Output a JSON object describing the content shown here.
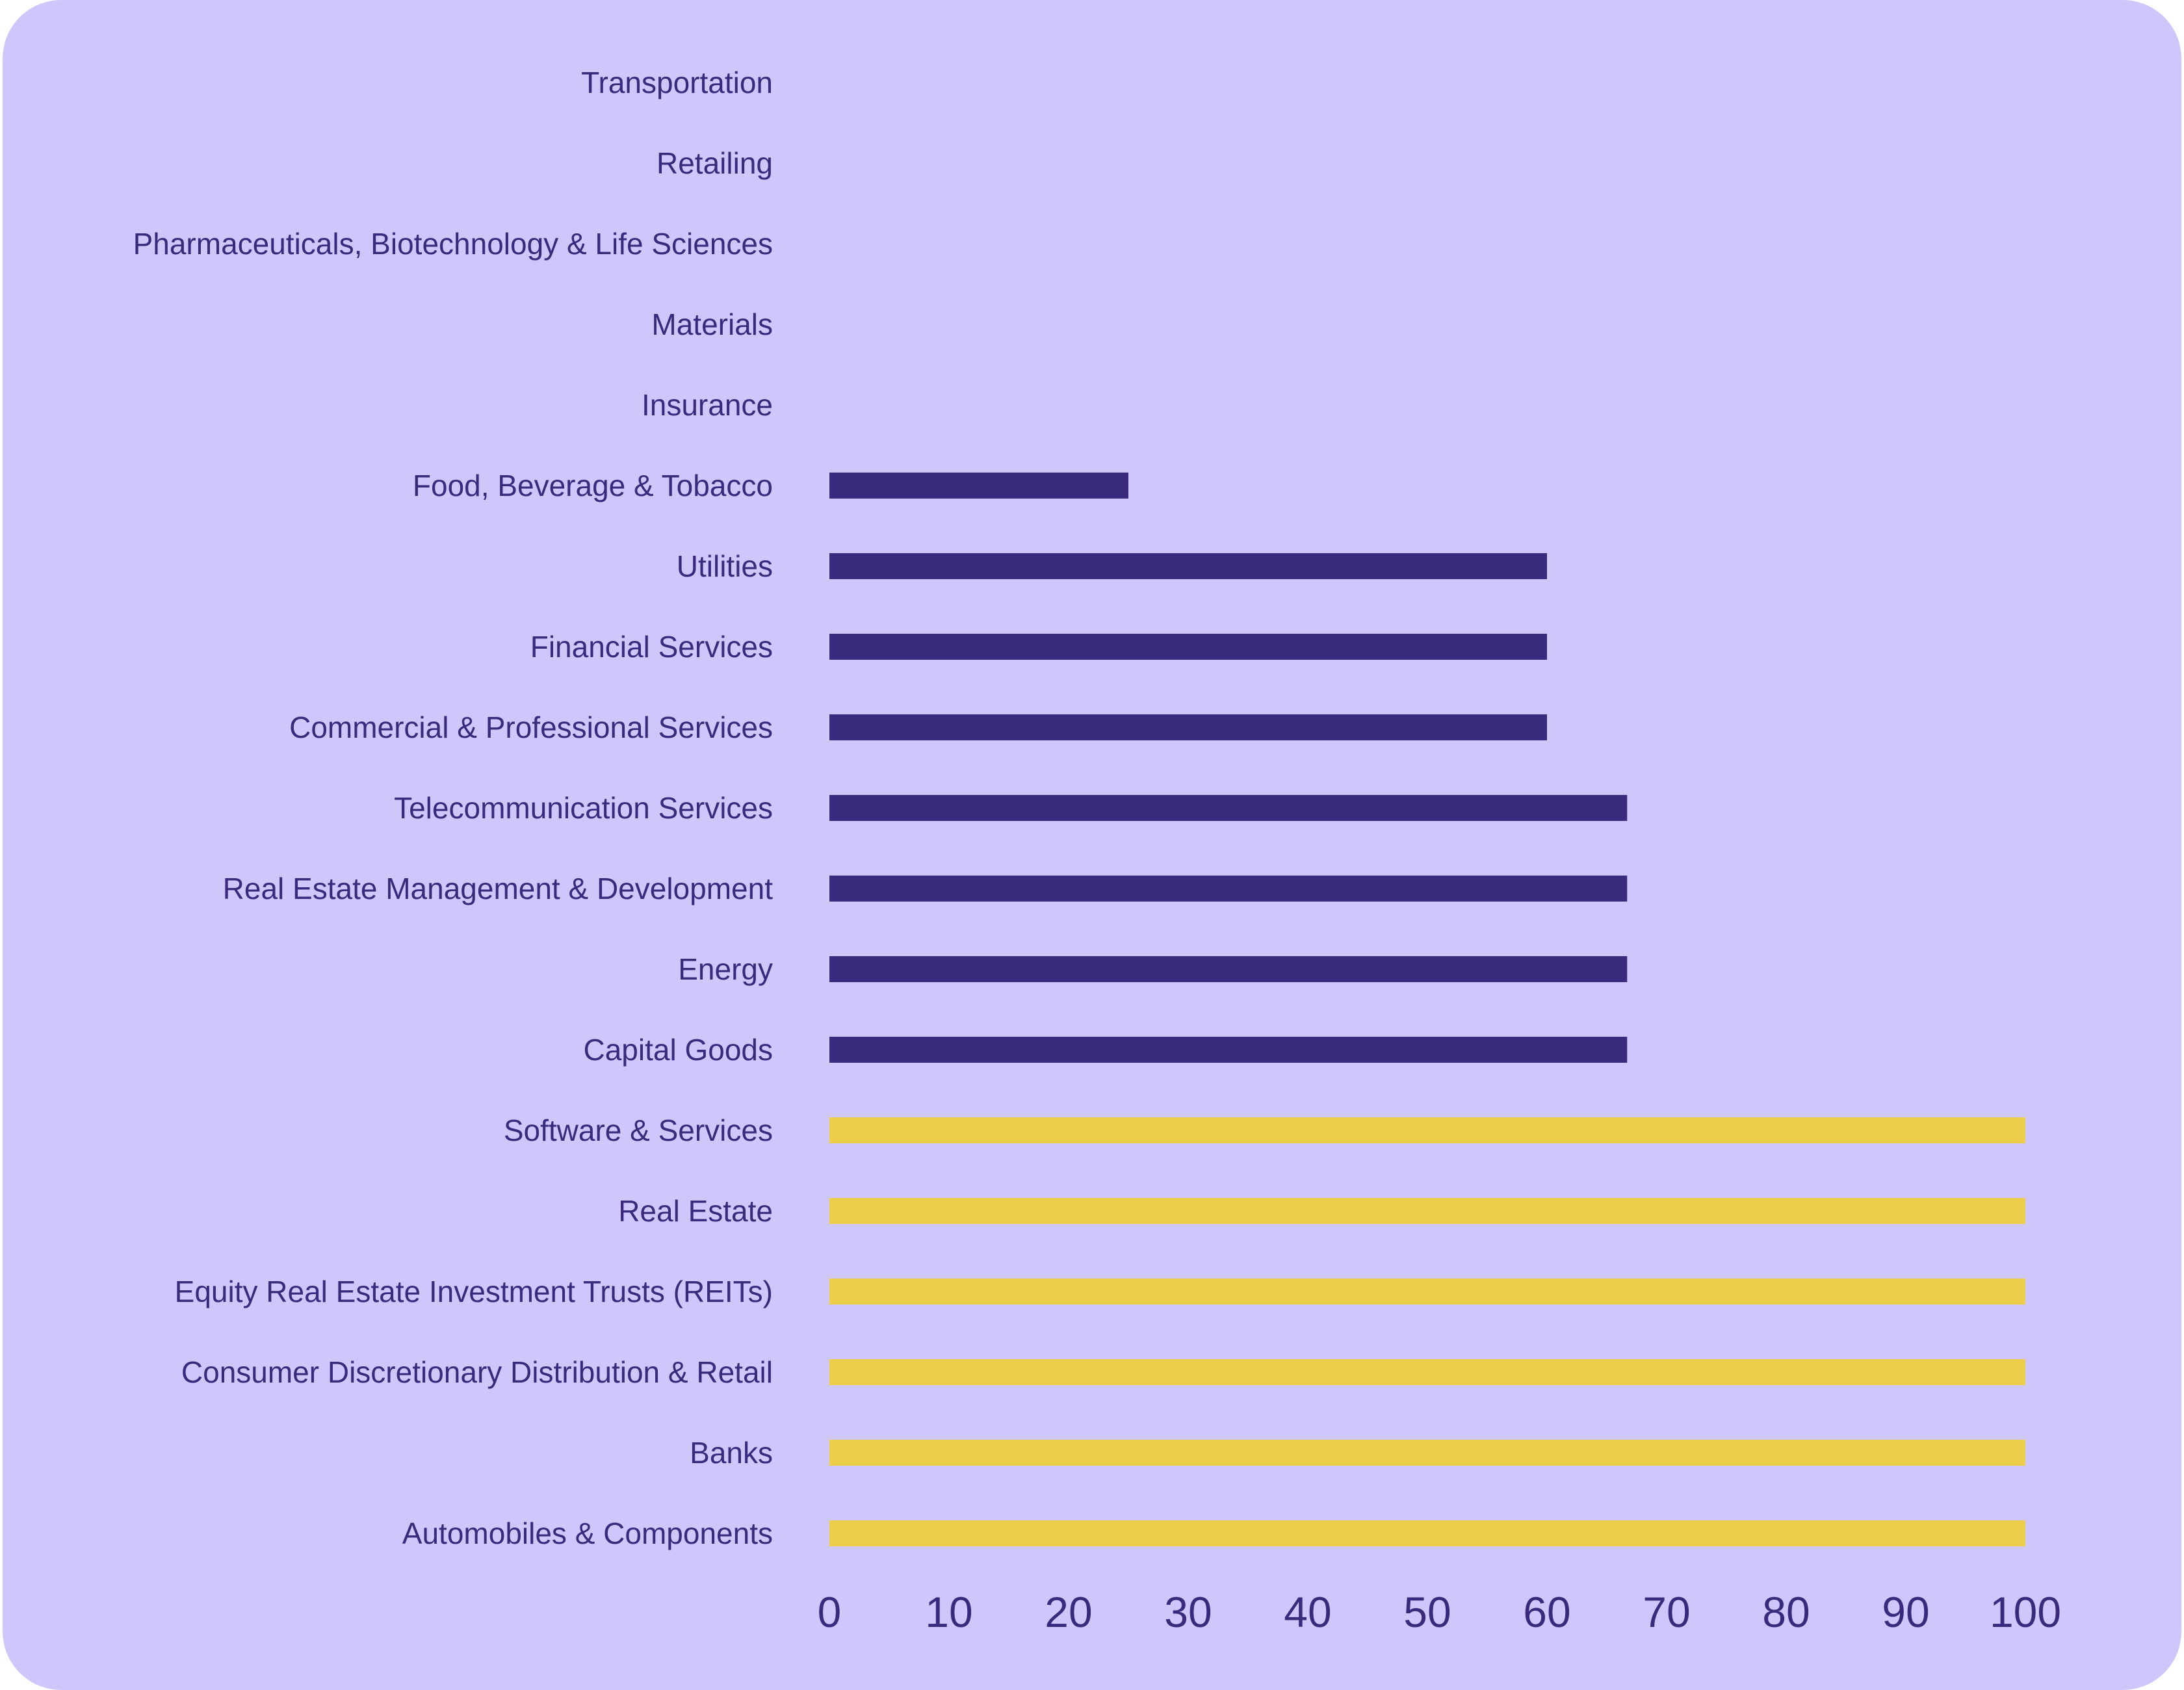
{
  "colors": {
    "background": "#cfc7fc",
    "text": "#3a2a7e",
    "bar_dark": "#3a2a7e",
    "bar_highlight": "#ecce4a"
  },
  "chart_data": {
    "type": "bar",
    "orientation": "horizontal",
    "title": "",
    "xlabel": "",
    "ylabel": "",
    "xlim": [
      0,
      100
    ],
    "xticks": [
      "0",
      "10",
      "20",
      "30",
      "40",
      "50",
      "60",
      "70",
      "80",
      "90",
      "100"
    ],
    "grid": false,
    "legend": "none",
    "categories": [
      "Transportation",
      "Retailing",
      "Pharmaceuticals, Biotechnology & Life Sciences",
      "Materials",
      "Insurance",
      "Food, Beverage & Tobacco",
      "Utilities",
      "Financial Services",
      "Commercial & Professional Services",
      "Telecommunication Services",
      "Real Estate Management & Development",
      "Energy",
      "Capital Goods",
      "Software & Services",
      "Real Estate",
      "Equity Real Estate Investment Trusts (REITs)",
      "Consumer Discretionary Distribution & Retail",
      "Banks",
      "Automobiles & Components"
    ],
    "values": [
      0,
      0,
      0,
      0,
      0,
      25,
      60,
      60,
      60,
      66.7,
      66.7,
      66.7,
      66.7,
      100,
      100,
      100,
      100,
      100,
      100
    ],
    "bar_colors": [
      "#3a2a7e",
      "#3a2a7e",
      "#3a2a7e",
      "#3a2a7e",
      "#3a2a7e",
      "#3a2a7e",
      "#3a2a7e",
      "#3a2a7e",
      "#3a2a7e",
      "#3a2a7e",
      "#3a2a7e",
      "#3a2a7e",
      "#3a2a7e",
      "#ecce4a",
      "#ecce4a",
      "#ecce4a",
      "#ecce4a",
      "#ecce4a",
      "#ecce4a"
    ]
  }
}
